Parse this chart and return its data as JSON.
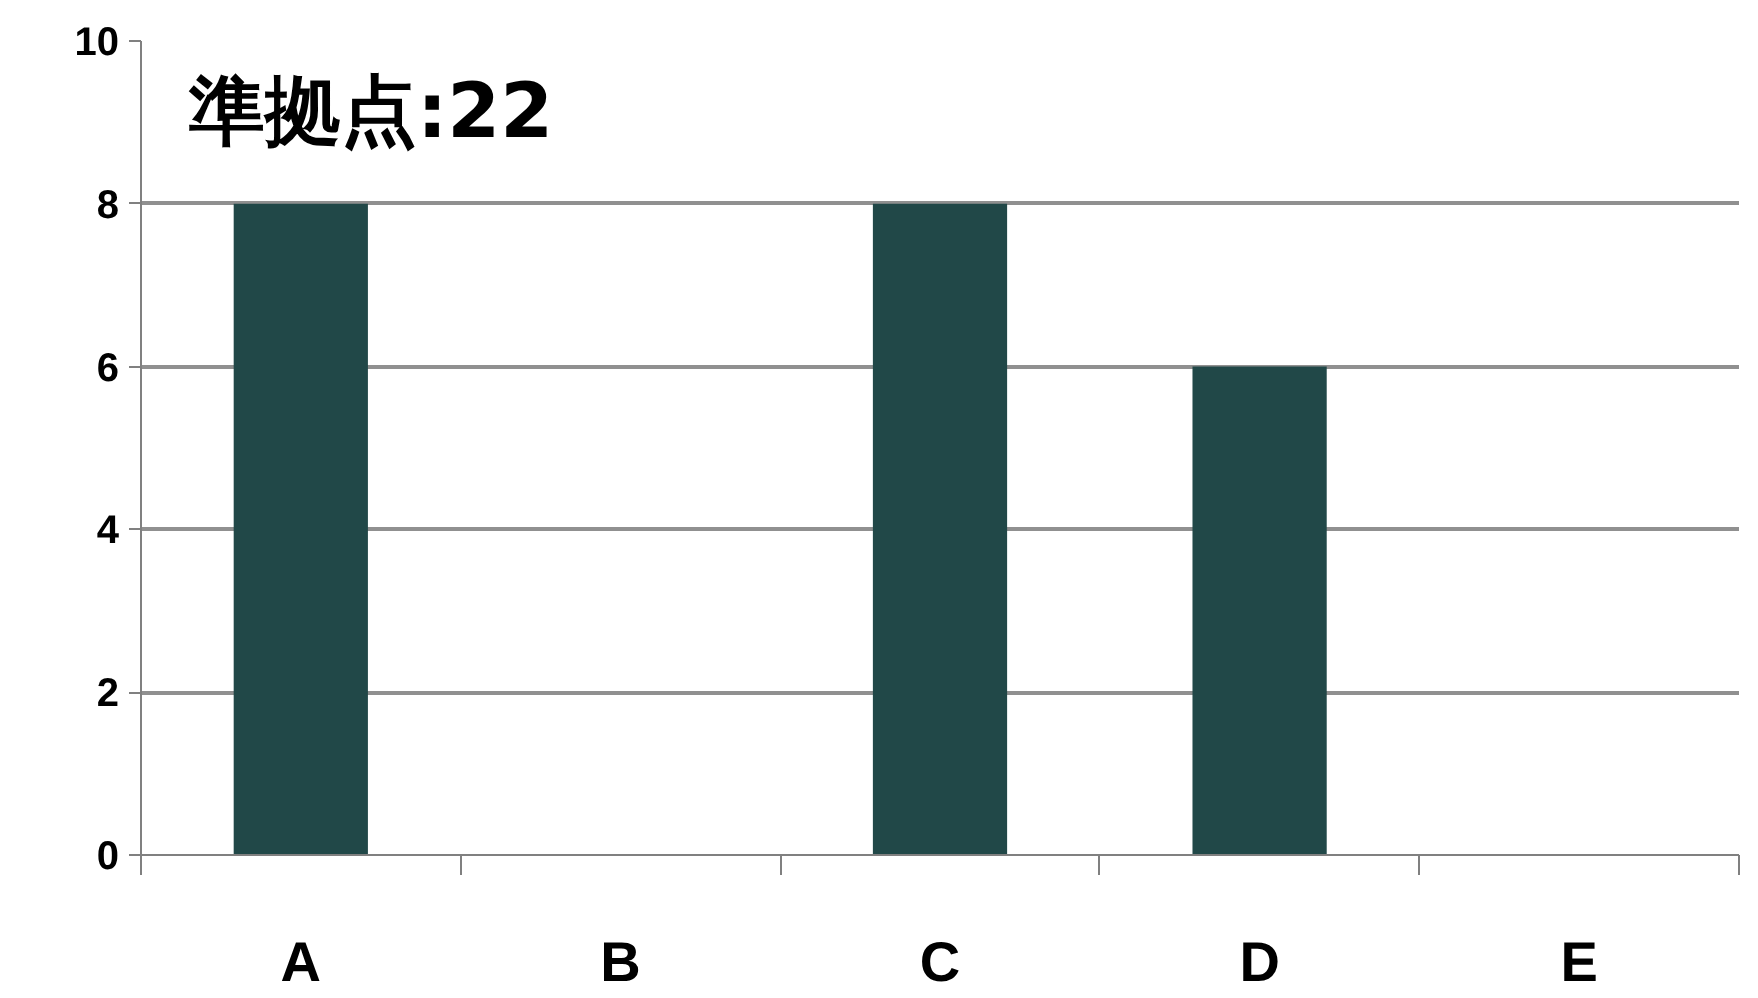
{
  "chart_data": {
    "type": "bar",
    "categories": [
      "A",
      "B",
      "C",
      "D",
      "E"
    ],
    "values": [
      8,
      0,
      8,
      6,
      0
    ],
    "color": "#214848",
    "ylim": [
      0,
      10
    ],
    "yticks": [
      0,
      2,
      4,
      6,
      8,
      10
    ],
    "grid": "y",
    "annotations": [
      "準拠点:22"
    ]
  }
}
